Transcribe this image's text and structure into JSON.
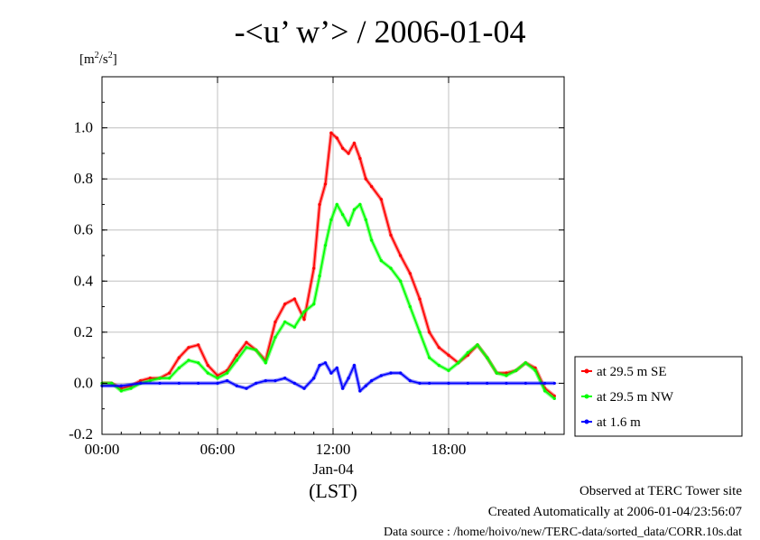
{
  "chart_data": {
    "type": "line",
    "title": "-<u’ w’> / 2006-01-04",
    "ylabel_unit": "[m2/s2]",
    "ylim": [
      -0.2,
      1.2
    ],
    "xlim": [
      0,
      24
    ],
    "grid": true,
    "y_ticks": [
      "-0.2",
      "0.0",
      "0.2",
      "0.4",
      "0.6",
      "0.8",
      "1.0"
    ],
    "x_ticks": [
      {
        "x": 0,
        "label": "00:00"
      },
      {
        "x": 6,
        "label": "06:00"
      },
      {
        "x": 12,
        "label": "12:00"
      },
      {
        "x": 18,
        "label": "18:00"
      }
    ],
    "x_sublabel": "Jan-04",
    "x_axis_label": "(LST)",
    "legend_position": "right",
    "series": [
      {
        "name": "at 29.5 m SE",
        "color": "#ff0000",
        "x": [
          0,
          0.5,
          1,
          1.5,
          2,
          2.5,
          3,
          3.5,
          4,
          4.5,
          5,
          5.5,
          6,
          6.5,
          7,
          7.5,
          8,
          8.5,
          9,
          9.5,
          10,
          10.5,
          11,
          11.3,
          11.6,
          11.9,
          12.2,
          12.5,
          12.8,
          13.1,
          13.4,
          13.7,
          14,
          14.5,
          15,
          15.5,
          16,
          16.5,
          17,
          17.5,
          18,
          18.5,
          19,
          19.5,
          20,
          20.5,
          21,
          21.5,
          22,
          22.5,
          23,
          23.5
        ],
        "y": [
          0.0,
          0.0,
          -0.02,
          -0.01,
          0.01,
          0.02,
          0.02,
          0.04,
          0.1,
          0.14,
          0.15,
          0.07,
          0.03,
          0.05,
          0.11,
          0.16,
          0.13,
          0.09,
          0.24,
          0.31,
          0.33,
          0.25,
          0.45,
          0.7,
          0.78,
          0.98,
          0.96,
          0.92,
          0.9,
          0.94,
          0.88,
          0.8,
          0.77,
          0.72,
          0.58,
          0.5,
          0.43,
          0.33,
          0.2,
          0.14,
          0.11,
          0.08,
          0.11,
          0.15,
          0.1,
          0.04,
          0.04,
          0.05,
          0.08,
          0.06,
          -0.02,
          -0.05
        ]
      },
      {
        "name": "at 29.5 m NW",
        "color": "#00ff00",
        "x": [
          0,
          0.5,
          1,
          1.5,
          2,
          2.5,
          3,
          3.5,
          4,
          4.5,
          5,
          5.5,
          6,
          6.5,
          7,
          7.5,
          8,
          8.5,
          9,
          9.5,
          10,
          10.5,
          11,
          11.3,
          11.6,
          11.9,
          12.2,
          12.5,
          12.8,
          13.1,
          13.4,
          13.7,
          14,
          14.5,
          15,
          15.5,
          16,
          16.5,
          17,
          17.5,
          18,
          18.5,
          19,
          19.5,
          20,
          20.5,
          21,
          21.5,
          22,
          22.5,
          23,
          23.5
        ],
        "y": [
          0.0,
          0.0,
          -0.03,
          -0.02,
          0.0,
          0.01,
          0.02,
          0.02,
          0.06,
          0.09,
          0.08,
          0.04,
          0.02,
          0.04,
          0.09,
          0.14,
          0.13,
          0.08,
          0.18,
          0.24,
          0.22,
          0.28,
          0.31,
          0.42,
          0.54,
          0.64,
          0.7,
          0.66,
          0.62,
          0.68,
          0.7,
          0.64,
          0.56,
          0.48,
          0.45,
          0.4,
          0.3,
          0.2,
          0.1,
          0.07,
          0.05,
          0.08,
          0.12,
          0.15,
          0.1,
          0.04,
          0.03,
          0.05,
          0.08,
          0.05,
          -0.03,
          -0.06
        ]
      },
      {
        "name": "at 1.6 m",
        "color": "#0000ff",
        "x": [
          0,
          1,
          2,
          3,
          4,
          5,
          6,
          6.5,
          7,
          7.5,
          8,
          8.5,
          9,
          9.5,
          10,
          10.5,
          11,
          11.3,
          11.6,
          11.9,
          12.2,
          12.5,
          12.8,
          13.1,
          13.4,
          13.7,
          14,
          14.5,
          15,
          15.5,
          16,
          16.5,
          17,
          18,
          19,
          20,
          21,
          22,
          23,
          23.5
        ],
        "y": [
          -0.01,
          -0.01,
          0.0,
          0.0,
          0.0,
          0.0,
          0.0,
          0.01,
          -0.01,
          -0.02,
          0.0,
          0.01,
          0.01,
          0.02,
          0.0,
          -0.02,
          0.02,
          0.07,
          0.08,
          0.04,
          0.06,
          -0.02,
          0.02,
          0.07,
          -0.03,
          -0.01,
          0.01,
          0.03,
          0.04,
          0.04,
          0.01,
          0.0,
          0.0,
          0.0,
          0.0,
          0.0,
          0.0,
          0.0,
          0.0,
          0.0
        ]
      }
    ]
  },
  "footer": {
    "line1": "Observed at TERC Tower site",
    "line2": "Created Automatically at 2006-01-04/23:56:07",
    "line3": "Data source : /home/hoivo/new/TERC-data/sorted_data/CORR.10s.dat"
  },
  "colors": {
    "grid": "#c0c0c0",
    "frame": "#000000"
  }
}
